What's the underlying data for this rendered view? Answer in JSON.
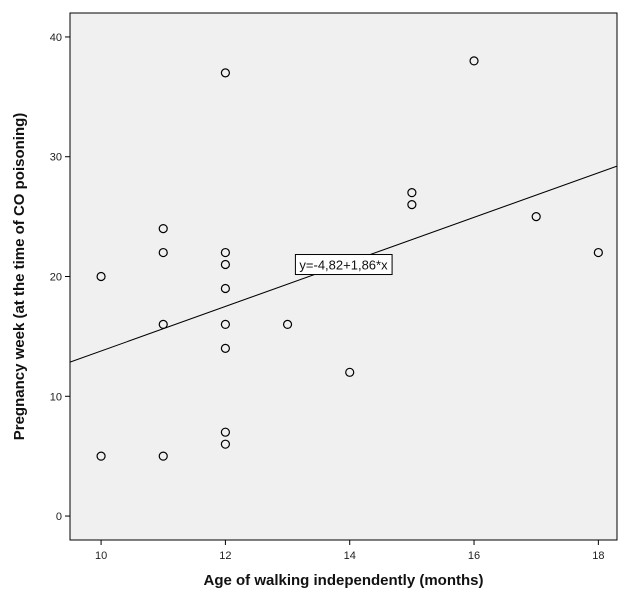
{
  "chart_data": {
    "type": "scatter",
    "title": "",
    "xlabel": "Age of walking independently (months)",
    "ylabel": "Pregnancy week (at the time of CO poisoning)",
    "xlim": [
      9.5,
      18.3
    ],
    "ylim": [
      -2,
      42
    ],
    "xticks": [
      10,
      12,
      14,
      16,
      18
    ],
    "yticks": [
      0,
      10,
      20,
      30,
      40
    ],
    "grid": false,
    "background": "#f0f0f0",
    "points": [
      {
        "x": 10,
        "y": 20
      },
      {
        "x": 10,
        "y": 5
      },
      {
        "x": 11,
        "y": 24
      },
      {
        "x": 11,
        "y": 22
      },
      {
        "x": 11,
        "y": 16
      },
      {
        "x": 11,
        "y": 5
      },
      {
        "x": 12,
        "y": 37
      },
      {
        "x": 12,
        "y": 22
      },
      {
        "x": 12,
        "y": 21
      },
      {
        "x": 12,
        "y": 19
      },
      {
        "x": 12,
        "y": 16
      },
      {
        "x": 12,
        "y": 14
      },
      {
        "x": 12,
        "y": 7
      },
      {
        "x": 12,
        "y": 6
      },
      {
        "x": 13,
        "y": 16
      },
      {
        "x": 14,
        "y": 12
      },
      {
        "x": 15,
        "y": 27
      },
      {
        "x": 15,
        "y": 26
      },
      {
        "x": 16,
        "y": 38
      },
      {
        "x": 17,
        "y": 25
      },
      {
        "x": 18,
        "y": 22
      }
    ],
    "fit_line": {
      "intercept": -4.82,
      "slope": 1.86,
      "label": "y=-4,82+1,86*x",
      "label_at": {
        "x": 13.9,
        "y": 21
      }
    }
  }
}
